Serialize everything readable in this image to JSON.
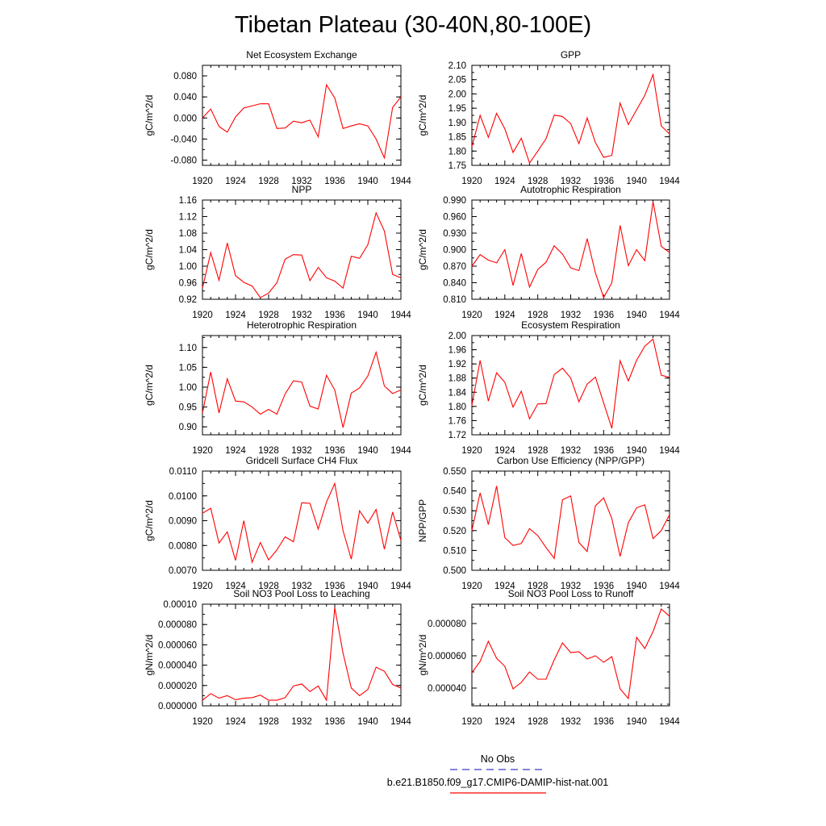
{
  "figure": {
    "title": "Tibetan Plateau (30-40N,80-100E)",
    "line_color": "#ff0000",
    "obs_color": "#3b3bcc"
  },
  "legend": {
    "entries": [
      {
        "label": "No Obs",
        "style": "dashed",
        "color": "#3b3bcc"
      },
      {
        "label": "b.e21.B1850.f09_g17.CMIP6-DAMIP-hist-nat.001",
        "style": "solid",
        "color": "#ff0000"
      }
    ]
  },
  "chart_data": [
    {
      "type": "line",
      "title": "Net Ecosystem Exchange",
      "ylabel": "gC/m^2/d",
      "xlim": [
        1920,
        1944
      ],
      "ylim": [
        -0.09,
        0.1
      ],
      "xticks": [
        1920,
        1924,
        1928,
        1932,
        1936,
        1940,
        1944
      ],
      "yticks": [
        -0.08,
        -0.04,
        0.0,
        0.04,
        0.08
      ],
      "ytick_labels": [
        "-0.080",
        "-0.040",
        "0.000",
        "0.040",
        "0.080"
      ],
      "series": [
        {
          "x": [
            1920,
            1921,
            1922,
            1923,
            1924,
            1925,
            1926,
            1927,
            1928,
            1929,
            1930,
            1931,
            1932,
            1933,
            1934,
            1935,
            1936,
            1937,
            1938,
            1939,
            1940,
            1941,
            1942,
            1943,
            1944
          ],
          "y": [
            0.0,
            0.017,
            -0.016,
            -0.027,
            0.002,
            0.019,
            0.023,
            0.027,
            0.027,
            -0.02,
            -0.019,
            -0.006,
            -0.009,
            -0.004,
            -0.036,
            0.063,
            0.038,
            -0.02,
            -0.015,
            -0.011,
            -0.015,
            -0.04,
            -0.076,
            0.02,
            0.04
          ]
        }
      ]
    },
    {
      "type": "line",
      "title": "GPP",
      "ylabel": "gC/m^2/d",
      "xlim": [
        1920,
        1944
      ],
      "ylim": [
        1.75,
        2.1
      ],
      "xticks": [
        1920,
        1924,
        1928,
        1932,
        1936,
        1940,
        1944
      ],
      "yticks": [
        1.75,
        1.8,
        1.85,
        1.9,
        1.95,
        2.0,
        2.05,
        2.1
      ],
      "ytick_labels": [
        "1.75",
        "1.80",
        "1.85",
        "1.90",
        "1.95",
        "2.00",
        "2.05",
        "2.10"
      ],
      "series": [
        {
          "x": [
            1920,
            1921,
            1922,
            1923,
            1924,
            1925,
            1926,
            1927,
            1928,
            1929,
            1930,
            1931,
            1932,
            1933,
            1934,
            1935,
            1936,
            1937,
            1938,
            1939,
            1940,
            1941,
            1942,
            1943,
            1944
          ],
          "y": [
            1.815,
            1.925,
            1.848,
            1.932,
            1.878,
            1.795,
            1.845,
            1.758,
            1.8,
            1.843,
            1.926,
            1.921,
            1.896,
            1.826,
            1.916,
            1.83,
            1.778,
            1.785,
            1.968,
            1.893,
            1.944,
            1.995,
            2.068,
            1.888,
            1.86
          ]
        }
      ]
    },
    {
      "type": "line",
      "title": "NPP",
      "ylabel": "gC/m^2/d",
      "xlim": [
        1920,
        1944
      ],
      "ylim": [
        0.92,
        1.16
      ],
      "xticks": [
        1920,
        1924,
        1928,
        1932,
        1936,
        1940,
        1944
      ],
      "yticks": [
        0.92,
        0.96,
        1.0,
        1.04,
        1.08,
        1.12,
        1.16
      ],
      "ytick_labels": [
        "0.92",
        "0.96",
        "1.00",
        "1.04",
        "1.08",
        "1.12",
        "1.16"
      ],
      "series": [
        {
          "x": [
            1920,
            1921,
            1922,
            1923,
            1924,
            1925,
            1926,
            1927,
            1928,
            1929,
            1930,
            1931,
            1932,
            1933,
            1934,
            1935,
            1936,
            1937,
            1938,
            1939,
            1940,
            1941,
            1942,
            1943,
            1944
          ],
          "y": [
            0.947,
            1.033,
            0.966,
            1.056,
            0.977,
            0.961,
            0.952,
            0.924,
            0.935,
            0.96,
            1.017,
            1.028,
            1.027,
            0.965,
            0.997,
            0.972,
            0.964,
            0.947,
            1.024,
            1.019,
            1.052,
            1.129,
            1.085,
            0.98,
            0.972
          ]
        }
      ]
    },
    {
      "type": "line",
      "title": "Autotrophic Respiration",
      "ylabel": "gC/m^2/d",
      "xlim": [
        1920,
        1944
      ],
      "ylim": [
        0.81,
        0.99
      ],
      "xticks": [
        1920,
        1924,
        1928,
        1932,
        1936,
        1940,
        1944
      ],
      "yticks": [
        0.81,
        0.84,
        0.87,
        0.9,
        0.93,
        0.96,
        0.99
      ],
      "ytick_labels": [
        "0.810",
        "0.840",
        "0.870",
        "0.900",
        "0.930",
        "0.960",
        "0.990"
      ],
      "series": [
        {
          "x": [
            1920,
            1921,
            1922,
            1923,
            1924,
            1925,
            1926,
            1927,
            1928,
            1929,
            1930,
            1931,
            1932,
            1933,
            1934,
            1935,
            1936,
            1937,
            1938,
            1939,
            1940,
            1941,
            1942,
            1943,
            1944
          ],
          "y": [
            0.87,
            0.891,
            0.881,
            0.876,
            0.9,
            0.835,
            0.893,
            0.832,
            0.864,
            0.877,
            0.907,
            0.892,
            0.867,
            0.862,
            0.92,
            0.858,
            0.813,
            0.84,
            0.944,
            0.871,
            0.9,
            0.88,
            0.987,
            0.906,
            0.895
          ]
        }
      ]
    },
    {
      "type": "line",
      "title": "Heterotrophic Respiration",
      "ylabel": "gC/m^2/d",
      "xlim": [
        1920,
        1944
      ],
      "ylim": [
        0.88,
        1.13
      ],
      "xticks": [
        1920,
        1924,
        1928,
        1932,
        1936,
        1940,
        1944
      ],
      "yticks": [
        0.9,
        0.95,
        1.0,
        1.05,
        1.1
      ],
      "ytick_labels": [
        "0.90",
        "0.95",
        "1.00",
        "1.05",
        "1.10"
      ],
      "series": [
        {
          "x": [
            1920,
            1921,
            1922,
            1923,
            1924,
            1925,
            1926,
            1927,
            1928,
            1929,
            1930,
            1931,
            1932,
            1933,
            1934,
            1935,
            1936,
            1937,
            1938,
            1939,
            1940,
            1941,
            1942,
            1943,
            1944
          ],
          "y": [
            0.935,
            1.038,
            0.935,
            1.021,
            0.965,
            0.963,
            0.95,
            0.932,
            0.944,
            0.932,
            0.983,
            1.016,
            1.013,
            0.952,
            0.945,
            1.03,
            0.993,
            0.898,
            0.985,
            0.998,
            1.028,
            1.088,
            1.003,
            0.984,
            0.993
          ]
        }
      ]
    },
    {
      "type": "line",
      "title": "Ecosystem Respiration",
      "ylabel": "gC/m^2/d",
      "xlim": [
        1920,
        1944
      ],
      "ylim": [
        1.72,
        2.0
      ],
      "xticks": [
        1920,
        1924,
        1928,
        1932,
        1936,
        1940,
        1944
      ],
      "yticks": [
        1.72,
        1.76,
        1.8,
        1.84,
        1.88,
        1.92,
        1.96,
        2.0
      ],
      "ytick_labels": [
        "1.72",
        "1.76",
        "1.80",
        "1.84",
        "1.88",
        "1.92",
        "1.96",
        "2.00"
      ],
      "series": [
        {
          "x": [
            1920,
            1921,
            1922,
            1923,
            1924,
            1925,
            1926,
            1927,
            1928,
            1929,
            1930,
            1931,
            1932,
            1933,
            1934,
            1935,
            1936,
            1937,
            1938,
            1939,
            1940,
            1941,
            1942,
            1943,
            1944
          ],
          "y": [
            1.803,
            1.93,
            1.815,
            1.895,
            1.868,
            1.798,
            1.843,
            1.765,
            1.807,
            1.808,
            1.89,
            1.908,
            1.88,
            1.813,
            1.863,
            1.883,
            1.81,
            1.738,
            1.929,
            1.872,
            1.93,
            1.97,
            1.99,
            1.888,
            1.882
          ]
        }
      ]
    },
    {
      "type": "line",
      "title": "Gridcell Surface CH4 Flux",
      "ylabel": "gC/m^2/d",
      "xlim": [
        1920,
        1944
      ],
      "ylim": [
        0.007,
        0.011
      ],
      "xticks": [
        1920,
        1924,
        1928,
        1932,
        1936,
        1940,
        1944
      ],
      "yticks": [
        0.007,
        0.008,
        0.009,
        0.01,
        0.011
      ],
      "ytick_labels": [
        "0.0070",
        "0.0080",
        "0.0090",
        "0.0100",
        "0.0110"
      ],
      "series": [
        {
          "x": [
            1920,
            1921,
            1922,
            1923,
            1924,
            1925,
            1926,
            1927,
            1928,
            1929,
            1930,
            1931,
            1932,
            1933,
            1934,
            1935,
            1936,
            1937,
            1938,
            1939,
            1940,
            1941,
            1942,
            1943,
            1944
          ],
          "y": [
            0.0093,
            0.0095,
            0.0081,
            0.00855,
            0.0074,
            0.009,
            0.00732,
            0.00812,
            0.00742,
            0.00782,
            0.00835,
            0.00815,
            0.00972,
            0.0097,
            0.00866,
            0.00975,
            0.0105,
            0.0086,
            0.00745,
            0.0094,
            0.0089,
            0.00945,
            0.00785,
            0.00935,
            0.0082
          ]
        }
      ]
    },
    {
      "type": "line",
      "title": "Carbon Use Efficiency (NPP/GPP)",
      "ylabel": "NPP/GPP",
      "xlim": [
        1920,
        1944
      ],
      "ylim": [
        0.5,
        0.55
      ],
      "xticks": [
        1920,
        1924,
        1928,
        1932,
        1936,
        1940,
        1944
      ],
      "yticks": [
        0.5,
        0.51,
        0.52,
        0.53,
        0.54,
        0.55
      ],
      "ytick_labels": [
        "0.500",
        "0.510",
        "0.520",
        "0.530",
        "0.540",
        "0.550"
      ],
      "series": [
        {
          "x": [
            1920,
            1921,
            1922,
            1923,
            1924,
            1925,
            1926,
            1927,
            1928,
            1929,
            1930,
            1931,
            1932,
            1933,
            1934,
            1935,
            1936,
            1937,
            1938,
            1939,
            1940,
            1941,
            1942,
            1943,
            1944
          ],
          "y": [
            0.52,
            0.539,
            0.523,
            0.5425,
            0.5165,
            0.5125,
            0.5135,
            0.521,
            0.5175,
            0.5115,
            0.506,
            0.5355,
            0.5375,
            0.514,
            0.5095,
            0.5325,
            0.5365,
            0.526,
            0.507,
            0.524,
            0.5315,
            0.533,
            0.516,
            0.52,
            0.528
          ]
        }
      ]
    },
    {
      "type": "line",
      "title": "Soil NO3 Pool Loss to Leaching",
      "ylabel": "gN/m^2/d",
      "xlim": [
        1920,
        1944
      ],
      "ylim": [
        0.0,
        0.0001
      ],
      "xticks": [
        1920,
        1924,
        1928,
        1932,
        1936,
        1940,
        1944
      ],
      "yticks": [
        0.0,
        2e-05,
        4e-05,
        6e-05,
        8e-05,
        0.0001
      ],
      "ytick_labels": [
        "0.000000",
        "0.000020",
        "0.000040",
        "0.000060",
        "0.000080",
        "0.00010"
      ],
      "series": [
        {
          "x": [
            1920,
            1921,
            1922,
            1923,
            1924,
            1925,
            1926,
            1927,
            1928,
            1929,
            1930,
            1931,
            1932,
            1933,
            1934,
            1935,
            1936,
            1937,
            1938,
            1939,
            1940,
            1941,
            1942,
            1943,
            1944
          ],
          "y": [
            5.5e-06,
            1.2e-05,
            7.5e-06,
            1e-05,
            6e-06,
            7.5e-06,
            8e-06,
            1.05e-05,
            5.5e-06,
            5.5e-06,
            8e-06,
            1.95e-05,
            2.15e-05,
            1.4e-05,
            1.95e-05,
            5.5e-06,
            9.65e-05,
            5.2e-05,
            1.75e-05,
            1e-05,
            1.6e-05,
            3.8e-05,
            3.4e-05,
            2.1e-05,
            1.75e-05
          ]
        }
      ]
    },
    {
      "type": "line",
      "title": "Soil NO3 Pool Loss to Runoff",
      "ylabel": "gN/m^2/d",
      "xlim": [
        1920,
        1944
      ],
      "ylim": [
        2.9e-05,
        9.2e-05
      ],
      "xticks": [
        1920,
        1924,
        1928,
        1932,
        1936,
        1940,
        1944
      ],
      "yticks": [
        4e-05,
        6e-05,
        8e-05
      ],
      "ytick_labels": [
        "0.000040",
        "0.000060",
        "0.000080"
      ],
      "series": [
        {
          "x": [
            1920,
            1921,
            1922,
            1923,
            1924,
            1925,
            1926,
            1927,
            1928,
            1929,
            1930,
            1931,
            1932,
            1933,
            1934,
            1935,
            1936,
            1937,
            1938,
            1939,
            1940,
            1941,
            1942,
            1943,
            1944
          ],
          "y": [
            4.95e-05,
            5.65e-05,
            6.9e-05,
            5.85e-05,
            5.35e-05,
            3.95e-05,
            4.35e-05,
            5e-05,
            4.55e-05,
            4.55e-05,
            5.75e-05,
            6.8e-05,
            6.2e-05,
            6.25e-05,
            5.8e-05,
            6e-05,
            5.6e-05,
            5.95e-05,
            3.95e-05,
            3.35e-05,
            7.15e-05,
            6.45e-05,
            7.5e-05,
            8.9e-05,
            8.45e-05
          ]
        }
      ]
    }
  ]
}
